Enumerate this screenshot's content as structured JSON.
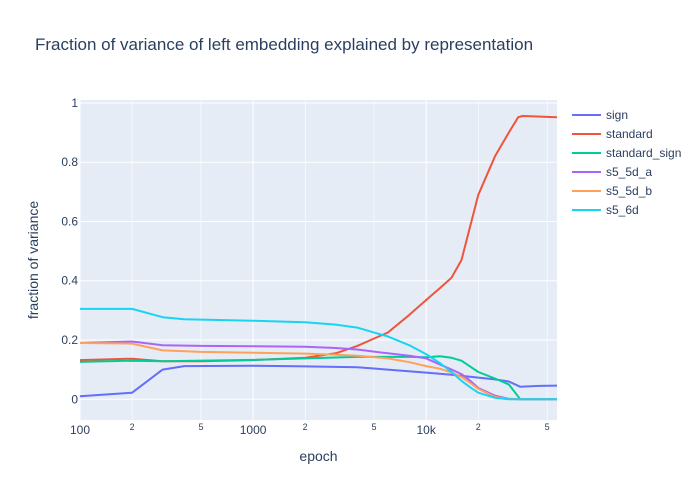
{
  "chart_data": {
    "type": "line",
    "title": "Fraction of variance of left embedding explained by representation",
    "xlabel": "epoch",
    "ylabel": "fraction of variance",
    "xscale": "log",
    "xlim": [
      100,
      57000
    ],
    "ylim": [
      -0.07,
      1.01
    ],
    "grid": true,
    "legend_position": "right",
    "x_ticks": [
      {
        "value": 100,
        "label": "100",
        "major": true
      },
      {
        "value": 200,
        "label": "2",
        "major": false
      },
      {
        "value": 500,
        "label": "5",
        "major": false
      },
      {
        "value": 1000,
        "label": "1000",
        "major": true
      },
      {
        "value": 2000,
        "label": "2",
        "major": false
      },
      {
        "value": 5000,
        "label": "5",
        "major": false
      },
      {
        "value": 10000,
        "label": "10k",
        "major": true
      },
      {
        "value": 20000,
        "label": "2",
        "major": false
      },
      {
        "value": 50000,
        "label": "5",
        "major": false
      }
    ],
    "y_ticks": [
      {
        "value": 0,
        "label": "0"
      },
      {
        "value": 0.2,
        "label": "0.2"
      },
      {
        "value": 0.4,
        "label": "0.4"
      },
      {
        "value": 0.6,
        "label": "0.6"
      },
      {
        "value": 0.8,
        "label": "0.8"
      },
      {
        "value": 1,
        "label": "1"
      }
    ],
    "series": [
      {
        "name": "sign",
        "color": "#636efa",
        "x": [
          100,
          200,
          300,
          400,
          1000,
          2000,
          4000,
          6000,
          10000,
          14000,
          20000,
          25000,
          30000,
          35000,
          45000,
          57000
        ],
        "y": [
          0.01,
          0.022,
          0.1,
          0.112,
          0.113,
          0.111,
          0.108,
          0.1,
          0.09,
          0.083,
          0.073,
          0.067,
          0.06,
          0.042,
          0.045,
          0.046
        ]
      },
      {
        "name": "standard",
        "color": "#ef553b",
        "x": [
          100,
          200,
          300,
          500,
          1000,
          2000,
          3000,
          4000,
          5000,
          6000,
          8000,
          10000,
          12000,
          14000,
          16000,
          20000,
          25000,
          30000,
          34000,
          36000,
          40000,
          57000
        ],
        "y": [
          0.132,
          0.137,
          0.128,
          0.128,
          0.132,
          0.14,
          0.155,
          0.18,
          0.205,
          0.225,
          0.285,
          0.335,
          0.375,
          0.41,
          0.47,
          0.69,
          0.82,
          0.9,
          0.952,
          0.956,
          0.955,
          0.952
        ]
      },
      {
        "name": "standard_sign",
        "color": "#00cc96",
        "x": [
          100,
          200,
          300,
          1000,
          2000,
          4000,
          8000,
          10000,
          12000,
          14000,
          16000,
          18000,
          20000,
          25000,
          30000,
          35000,
          40000,
          57000
        ],
        "y": [
          0.126,
          0.13,
          0.128,
          0.133,
          0.138,
          0.143,
          0.143,
          0.142,
          0.145,
          0.14,
          0.13,
          0.11,
          0.092,
          0.07,
          0.05,
          0.0,
          0.0,
          0.0
        ]
      },
      {
        "name": "s5_5d_a",
        "color": "#ab63fa",
        "x": [
          100,
          200,
          300,
          500,
          1000,
          2000,
          3000,
          4000,
          6000,
          8000,
          10000,
          14000,
          16000,
          18000,
          20000,
          25000,
          30000,
          35000,
          40000,
          57000
        ],
        "y": [
          0.19,
          0.195,
          0.182,
          0.18,
          0.179,
          0.177,
          0.173,
          0.168,
          0.155,
          0.147,
          0.138,
          0.1,
          0.085,
          0.062,
          0.038,
          0.012,
          0.002,
          0.0,
          0.0,
          0.0
        ]
      },
      {
        "name": "s5_5d_b",
        "color": "#ffa15a",
        "x": [
          100,
          200,
          300,
          500,
          1000,
          2000,
          3000,
          4000,
          6000,
          8000,
          10000,
          12000,
          14000,
          16000,
          18000,
          20000,
          25000,
          30000,
          35000,
          40000,
          57000
        ],
        "y": [
          0.19,
          0.188,
          0.165,
          0.16,
          0.157,
          0.154,
          0.15,
          0.147,
          0.138,
          0.125,
          0.112,
          0.103,
          0.09,
          0.075,
          0.055,
          0.035,
          0.008,
          0.001,
          0.0,
          0.0,
          0.0
        ]
      },
      {
        "name": "s5_6d",
        "color": "#19d3f3",
        "x": [
          100,
          200,
          300,
          400,
          1000,
          2000,
          3000,
          4000,
          5000,
          6000,
          8000,
          10000,
          12000,
          14000,
          16000,
          18000,
          20000,
          25000,
          30000,
          35000,
          40000,
          57000
        ],
        "y": [
          0.305,
          0.305,
          0.277,
          0.27,
          0.265,
          0.26,
          0.252,
          0.242,
          0.225,
          0.212,
          0.182,
          0.152,
          0.122,
          0.092,
          0.062,
          0.04,
          0.022,
          0.005,
          0.0,
          0.0,
          0.0,
          0.0
        ]
      }
    ]
  }
}
